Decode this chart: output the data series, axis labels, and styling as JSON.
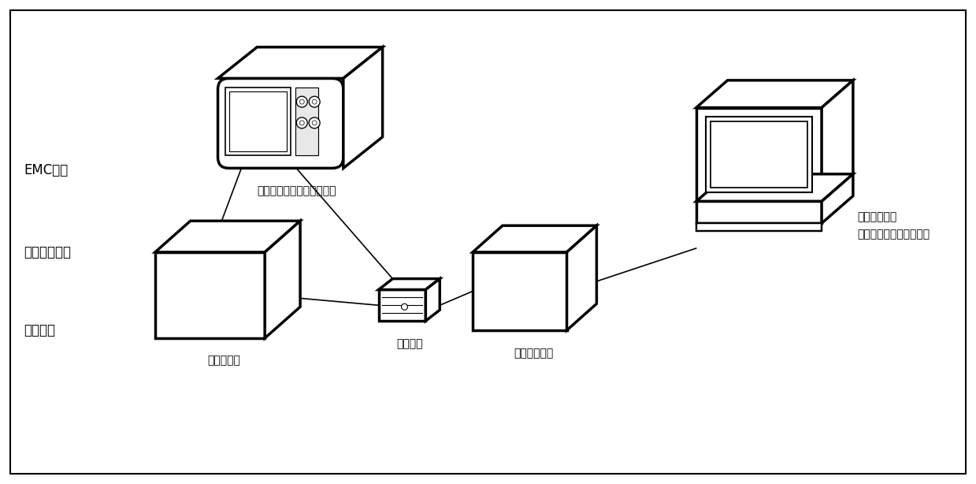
{
  "background_color": "#ffffff",
  "fig_width": 12.39,
  "fig_height": 6.14,
  "labels": {
    "emc": "EMC环境",
    "temp": "温度变化环境",
    "vibration": "振动条件",
    "monitor": "数据采集器物理状态监测仪",
    "collector": "数据采集器",
    "splitter": "光分路器",
    "merger": "仿真合并单元",
    "computer_label1": "电子式互感器",
    "computer_label2": "状态分析与评估软件平台"
  },
  "lw_thick": 2.5,
  "lw_thin": 1.2,
  "font_size": 11,
  "font_family": "SimHei"
}
